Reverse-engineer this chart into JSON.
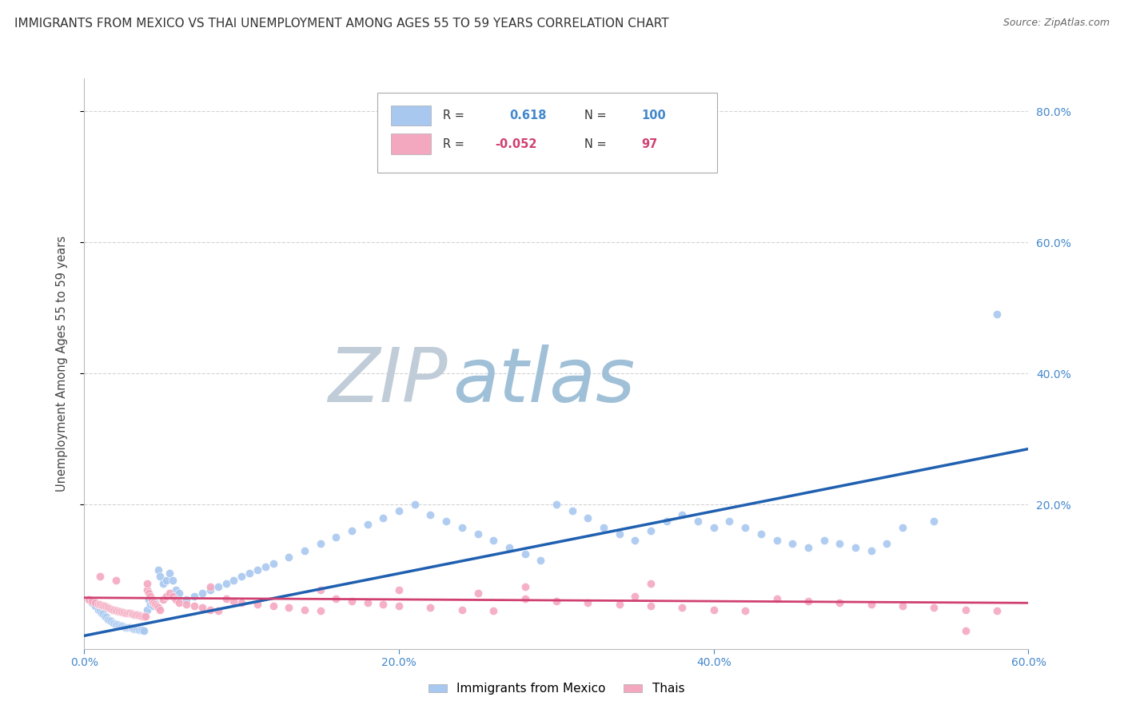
{
  "title": "IMMIGRANTS FROM MEXICO VS THAI UNEMPLOYMENT AMONG AGES 55 TO 59 YEARS CORRELATION CHART",
  "source": "Source: ZipAtlas.com",
  "ylabel": "Unemployment Among Ages 55 to 59 years",
  "xlim": [
    0.0,
    0.6
  ],
  "ylim": [
    -0.02,
    0.85
  ],
  "xtick_labels": [
    "0.0%",
    "20.0%",
    "40.0%",
    "60.0%"
  ],
  "xtick_values": [
    0.0,
    0.2,
    0.4,
    0.6
  ],
  "ytick_values": [
    0.2,
    0.4,
    0.6,
    0.8
  ],
  "ytick_labels": [
    "20.0%",
    "40.0%",
    "60.0%",
    "80.0%"
  ],
  "r1": 0.618,
  "n1": 100,
  "r2": -0.052,
  "n2": 97,
  "blue_color": "#A8C8F0",
  "pink_color": "#F4A8C0",
  "trendline_blue": "#2060B0",
  "trendline_pink": "#D04070",
  "watermark_zip_color": "#C8D8E8",
  "watermark_atlas_color": "#A8C8E8",
  "background_color": "#FFFFFF",
  "grid_color": "#C8C8C8",
  "title_color": "#333333",
  "axis_tick_color": "#4488CC",
  "blue_trend_x": [
    0.0,
    0.6
  ],
  "blue_trend_y": [
    0.0,
    0.285
  ],
  "pink_trend_x": [
    0.0,
    0.6
  ],
  "pink_trend_y": [
    0.058,
    0.05
  ],
  "blue_scatter_x": [
    0.005,
    0.007,
    0.009,
    0.01,
    0.011,
    0.012,
    0.013,
    0.014,
    0.015,
    0.016,
    0.017,
    0.018,
    0.019,
    0.02,
    0.021,
    0.022,
    0.023,
    0.024,
    0.025,
    0.026,
    0.027,
    0.028,
    0.029,
    0.03,
    0.031,
    0.032,
    0.033,
    0.034,
    0.035,
    0.036,
    0.037,
    0.038,
    0.04,
    0.041,
    0.042,
    0.043,
    0.044,
    0.045,
    0.047,
    0.048,
    0.05,
    0.052,
    0.054,
    0.056,
    0.058,
    0.06,
    0.065,
    0.07,
    0.075,
    0.08,
    0.085,
    0.09,
    0.095,
    0.1,
    0.105,
    0.11,
    0.115,
    0.12,
    0.13,
    0.14,
    0.15,
    0.16,
    0.17,
    0.18,
    0.19,
    0.2,
    0.21,
    0.22,
    0.23,
    0.24,
    0.25,
    0.26,
    0.27,
    0.28,
    0.29,
    0.3,
    0.31,
    0.32,
    0.33,
    0.34,
    0.35,
    0.36,
    0.37,
    0.38,
    0.39,
    0.4,
    0.41,
    0.42,
    0.43,
    0.44,
    0.45,
    0.46,
    0.47,
    0.48,
    0.49,
    0.5,
    0.51,
    0.52,
    0.54,
    0.58
  ],
  "blue_scatter_y": [
    0.05,
    0.045,
    0.04,
    0.038,
    0.035,
    0.033,
    0.03,
    0.028,
    0.025,
    0.023,
    0.022,
    0.02,
    0.019,
    0.018,
    0.017,
    0.016,
    0.015,
    0.015,
    0.014,
    0.013,
    0.013,
    0.012,
    0.012,
    0.011,
    0.011,
    0.01,
    0.01,
    0.01,
    0.009,
    0.009,
    0.009,
    0.008,
    0.04,
    0.055,
    0.048,
    0.052,
    0.045,
    0.05,
    0.1,
    0.09,
    0.08,
    0.085,
    0.095,
    0.085,
    0.07,
    0.065,
    0.055,
    0.06,
    0.065,
    0.07,
    0.075,
    0.08,
    0.085,
    0.09,
    0.095,
    0.1,
    0.105,
    0.11,
    0.12,
    0.13,
    0.14,
    0.15,
    0.16,
    0.17,
    0.18,
    0.19,
    0.2,
    0.185,
    0.175,
    0.165,
    0.155,
    0.145,
    0.135,
    0.125,
    0.115,
    0.2,
    0.19,
    0.18,
    0.165,
    0.155,
    0.145,
    0.16,
    0.175,
    0.185,
    0.175,
    0.165,
    0.175,
    0.165,
    0.155,
    0.145,
    0.14,
    0.135,
    0.145,
    0.14,
    0.135,
    0.13,
    0.14,
    0.165,
    0.175,
    0.49
  ],
  "pink_scatter_x": [
    0.003,
    0.005,
    0.007,
    0.009,
    0.01,
    0.011,
    0.012,
    0.013,
    0.014,
    0.015,
    0.016,
    0.017,
    0.018,
    0.019,
    0.02,
    0.021,
    0.022,
    0.023,
    0.024,
    0.025,
    0.026,
    0.027,
    0.028,
    0.029,
    0.03,
    0.031,
    0.032,
    0.033,
    0.034,
    0.035,
    0.036,
    0.037,
    0.038,
    0.039,
    0.04,
    0.041,
    0.042,
    0.043,
    0.044,
    0.045,
    0.046,
    0.047,
    0.048,
    0.05,
    0.052,
    0.054,
    0.056,
    0.058,
    0.06,
    0.065,
    0.07,
    0.075,
    0.08,
    0.085,
    0.09,
    0.095,
    0.1,
    0.11,
    0.12,
    0.13,
    0.14,
    0.15,
    0.16,
    0.17,
    0.18,
    0.19,
    0.2,
    0.22,
    0.24,
    0.26,
    0.28,
    0.3,
    0.32,
    0.34,
    0.36,
    0.38,
    0.4,
    0.42,
    0.44,
    0.46,
    0.48,
    0.5,
    0.52,
    0.54,
    0.56,
    0.58,
    0.35,
    0.25,
    0.15,
    0.08,
    0.04,
    0.02,
    0.01,
    0.36,
    0.28,
    0.2,
    0.56
  ],
  "pink_scatter_y": [
    0.055,
    0.053,
    0.05,
    0.048,
    0.048,
    0.047,
    0.046,
    0.045,
    0.044,
    0.043,
    0.042,
    0.041,
    0.04,
    0.039,
    0.038,
    0.038,
    0.037,
    0.037,
    0.036,
    0.036,
    0.035,
    0.035,
    0.034,
    0.034,
    0.033,
    0.033,
    0.032,
    0.032,
    0.032,
    0.031,
    0.031,
    0.03,
    0.03,
    0.03,
    0.07,
    0.065,
    0.06,
    0.055,
    0.05,
    0.048,
    0.045,
    0.043,
    0.04,
    0.055,
    0.06,
    0.065,
    0.06,
    0.055,
    0.05,
    0.048,
    0.045,
    0.043,
    0.04,
    0.038,
    0.056,
    0.053,
    0.05,
    0.048,
    0.045,
    0.043,
    0.04,
    0.038,
    0.056,
    0.053,
    0.05,
    0.048,
    0.045,
    0.043,
    0.04,
    0.038,
    0.056,
    0.053,
    0.05,
    0.048,
    0.045,
    0.043,
    0.04,
    0.038,
    0.056,
    0.053,
    0.05,
    0.048,
    0.045,
    0.043,
    0.04,
    0.038,
    0.06,
    0.065,
    0.07,
    0.075,
    0.08,
    0.085,
    0.09,
    0.08,
    0.075,
    0.07,
    0.008
  ]
}
